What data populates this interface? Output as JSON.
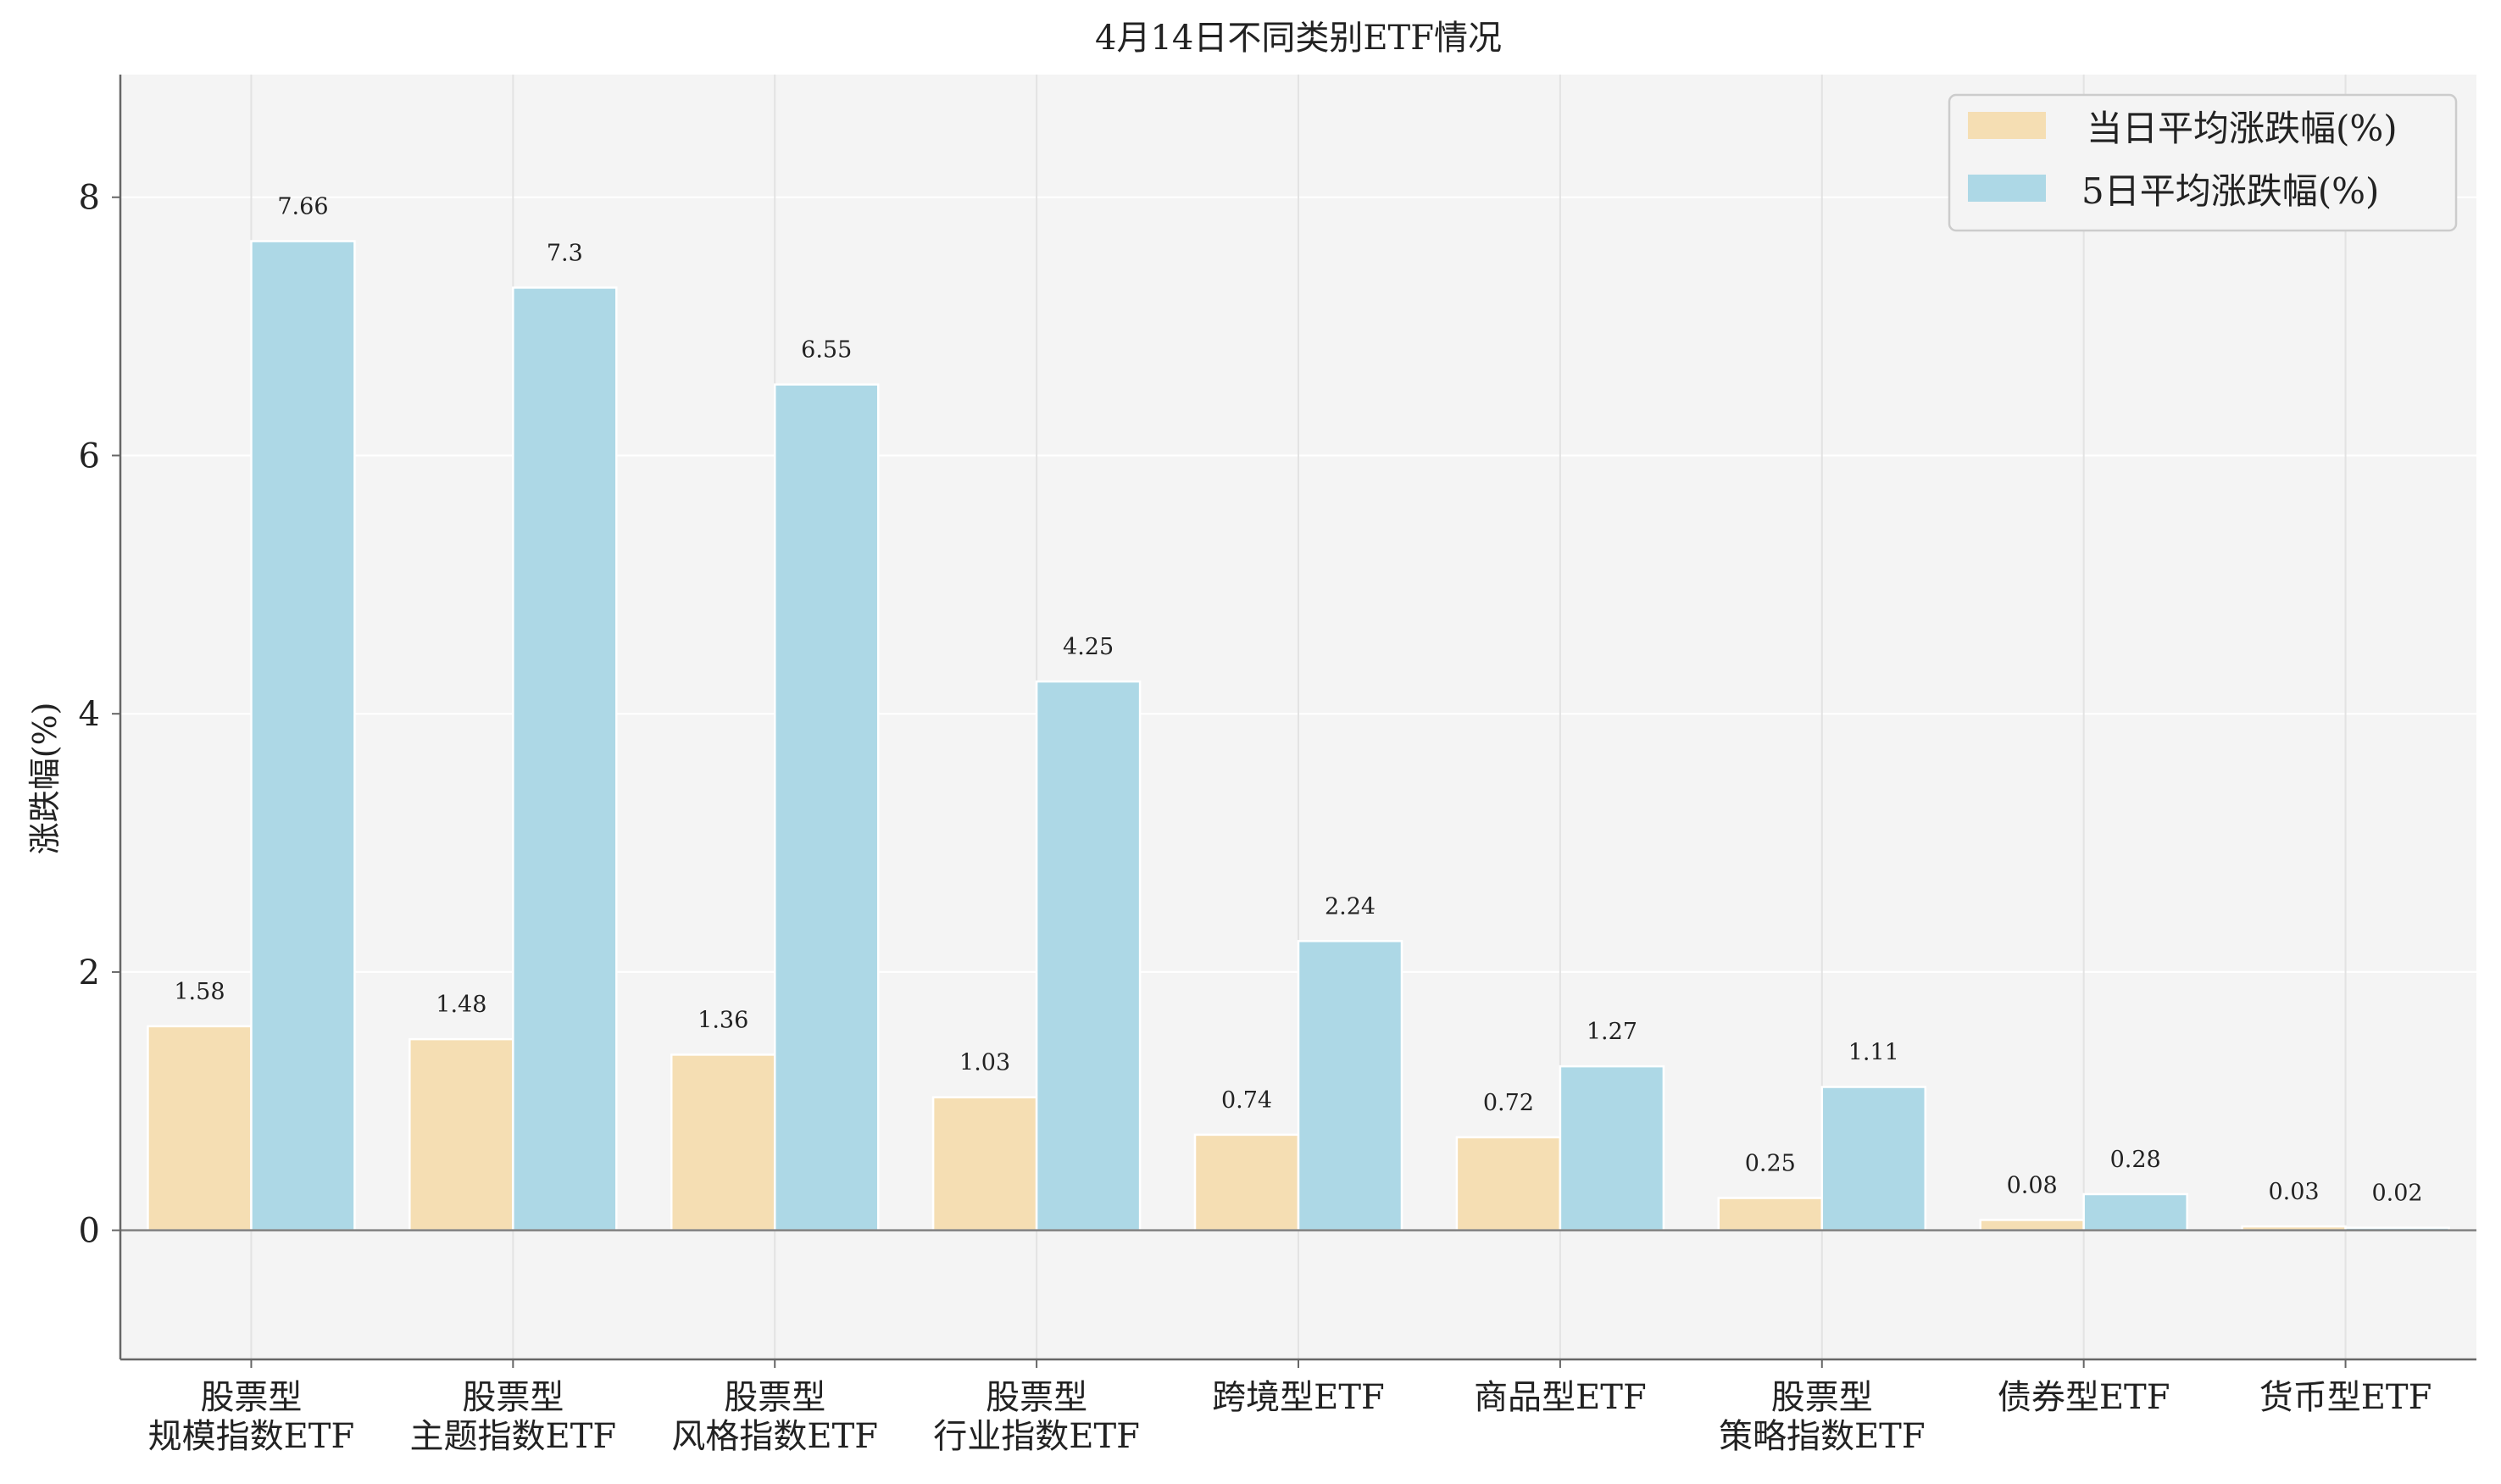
{
  "chart_data": {
    "type": "bar",
    "title": "4月14日不同类别ETF情况",
    "xlabel": "",
    "ylabel": "涨跌幅(%)",
    "ylim": [
      -1.0,
      8.0
    ],
    "yticks": [
      0,
      2,
      4,
      6,
      8
    ],
    "ytick_labels": [
      "0",
      "2",
      "4",
      "6",
      "8"
    ],
    "grid": true,
    "legend_position": "top-right",
    "categories": [
      [
        "股票型",
        "规模指数ETF"
      ],
      [
        "股票型",
        "主题指数ETF"
      ],
      [
        "股票型",
        "风格指数ETF"
      ],
      [
        "股票型",
        "行业指数ETF"
      ],
      [
        "跨境型ETF"
      ],
      [
        "商品型ETF"
      ],
      [
        "股票型",
        "策略指数ETF"
      ],
      [
        "债券型ETF"
      ],
      [
        "货币型ETF"
      ]
    ],
    "series": [
      {
        "name": "当日平均涨跌幅(%)",
        "color": "#f5deb3",
        "values": [
          1.58,
          1.48,
          1.36,
          1.03,
          0.74,
          0.72,
          0.25,
          0.08,
          0.03
        ],
        "labels": [
          "1.58",
          "1.48",
          "1.36",
          "1.03",
          "0.74",
          "0.72",
          "0.25",
          "0.08",
          "0.03"
        ]
      },
      {
        "name": "5日平均涨跌幅(%)",
        "color": "#add8e6",
        "values": [
          7.66,
          7.3,
          6.55,
          4.25,
          2.24,
          1.27,
          1.11,
          0.28,
          0.02
        ],
        "labels": [
          "7.66",
          "7.3",
          "6.55",
          "4.25",
          "2.24",
          "1.27",
          "1.11",
          "0.28",
          "0.02"
        ]
      }
    ]
  }
}
